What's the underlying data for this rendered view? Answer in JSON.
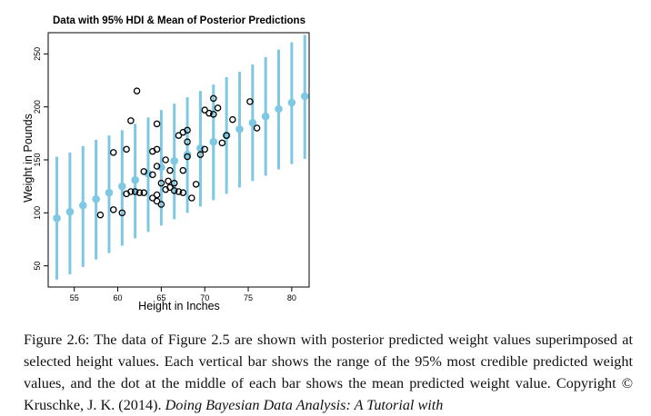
{
  "chart_data": {
    "type": "scatter",
    "title": "Data with 95% HDI & Mean of Posterior Predictions",
    "xlabel": "Height in Inches",
    "ylabel": "Weight in Pounds",
    "xlim": [
      52,
      82
    ],
    "ylim": [
      30,
      270
    ],
    "xticks": [
      55,
      60,
      65,
      70,
      75,
      80
    ],
    "yticks": [
      50,
      100,
      150,
      200,
      250
    ],
    "grid": false,
    "legend": "none",
    "colors": {
      "prediction": "#7ec8e3",
      "data": "#000000"
    },
    "data_points": {
      "x": [
        62.2,
        61.5,
        64.5,
        71.0,
        71.5,
        75.2,
        68.0,
        67.5,
        70.0,
        70.5,
        71.0,
        76.0,
        72.5,
        73.2,
        67.0,
        68.0,
        59.5,
        61.0,
        64.0,
        64.5,
        65.5,
        66.0,
        67.5,
        68.0,
        69.5,
        70.0,
        72.0,
        63.0,
        64.0,
        64.5,
        65.0,
        65.8,
        66.5,
        67.0,
        68.5,
        69.0,
        61.0,
        61.5,
        62.5,
        63.0,
        64.0,
        64.5,
        65.5,
        66.0,
        66.5,
        67.5,
        58.0,
        59.5,
        60.5,
        62.0,
        64.5,
        65.0
      ],
      "y": [
        215,
        187,
        184,
        208,
        199,
        205,
        178,
        176,
        197,
        194,
        193,
        180,
        173,
        188,
        173,
        167,
        157,
        160,
        158,
        160,
        150,
        140,
        140,
        153,
        155,
        160,
        166,
        139,
        136,
        144,
        128,
        130,
        128,
        120,
        114,
        127,
        118,
        120,
        119,
        119,
        114,
        117,
        122,
        124,
        121,
        119,
        98,
        103,
        100,
        120,
        111,
        108
      ]
    },
    "predictions": {
      "x": [
        53.0,
        54.5,
        56.0,
        57.5,
        59.0,
        60.5,
        62.0,
        63.5,
        65.0,
        66.5,
        68.0,
        69.5,
        71.0,
        72.5,
        74.0,
        75.5,
        77.0,
        78.5,
        80.0,
        81.5
      ],
      "mean": [
        95,
        101,
        107,
        113,
        119,
        125,
        131,
        137,
        143,
        149,
        155,
        161,
        167,
        173,
        179,
        185,
        191,
        198,
        204,
        210
      ],
      "hdi_low": [
        37,
        42,
        49,
        56,
        62,
        69,
        76,
        82,
        88,
        94,
        100,
        106,
        112,
        118,
        124,
        130,
        135,
        141,
        146,
        151
      ],
      "hdi_high": [
        153,
        157,
        163,
        169,
        173,
        178,
        184,
        190,
        197,
        203,
        209,
        215,
        221,
        228,
        233,
        240,
        247,
        254,
        261,
        268
      ]
    }
  },
  "caption": {
    "text": "Figure 2.6: The data of Figure 2.5 are shown with posterior predicted weight values superimposed at selected height values. Each vertical bar shows the range of the 95% most credible predicted weight values, and the dot at the middle of each bar shows the mean predicted weight value. Copyright © Kruschke, J. K. (2014).",
    "italic_text": "Doing Bayesian Data Analysis: A Tutorial with"
  }
}
